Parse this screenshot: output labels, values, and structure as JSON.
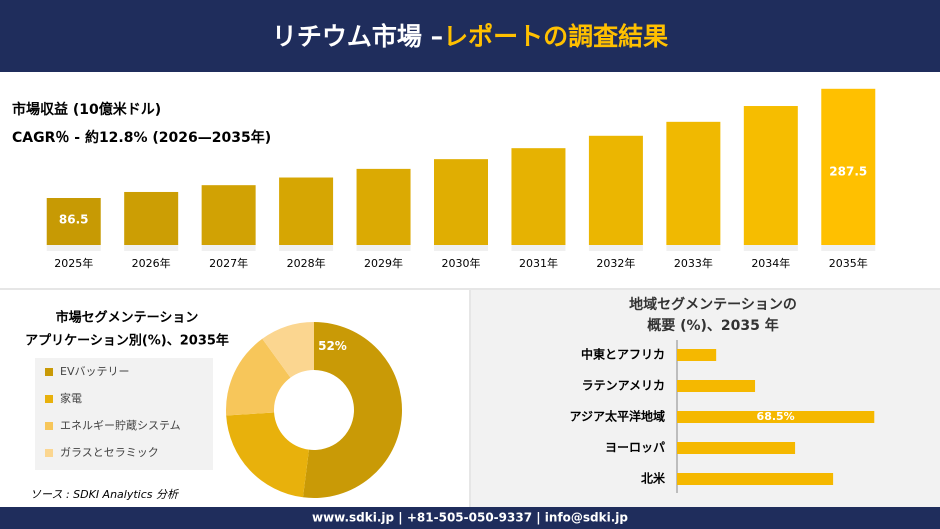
{
  "header": {
    "title": "リチウム市場 –",
    "title_highlight": "レポートの調査結果"
  },
  "chart_data": [
    {
      "type": "bar",
      "title": "市場収益 (10億米ドル)",
      "subtitle": "CAGR％ - 約12.8% (2026—2035年)",
      "categories": [
        "2025年",
        "2026年",
        "2027年",
        "2028年",
        "2029年",
        "2030年",
        "2031年",
        "2032年",
        "2033年",
        "2034年",
        "2035年"
      ],
      "values": [
        86.5,
        97.6,
        110.1,
        124.2,
        140.1,
        158.0,
        178.2,
        201.0,
        226.7,
        255.8,
        287.5
      ],
      "value_labels": [
        "86.5",
        null,
        null,
        null,
        null,
        null,
        null,
        null,
        null,
        null,
        "287.5"
      ],
      "colors": [
        "#c79a04",
        "#cc9e04",
        "#d1a204",
        "#d6a603",
        "#dbaa03",
        "#e0ae02",
        "#e6b202",
        "#ebb601",
        "#f0b901",
        "#f6bd00",
        "#ffc000"
      ],
      "ylim": [
        0,
        300
      ]
    },
    {
      "type": "pie",
      "title": "市場セグメンテーション",
      "subtitle": "アプリケーション別(%)、2035年",
      "categories": [
        "EVバッテリー",
        "家電",
        "エネルギー貯蔵システム",
        "ガラスとセラミック"
      ],
      "values": [
        52,
        22,
        16,
        10
      ],
      "value_labels": [
        "52%",
        null,
        null,
        null
      ],
      "colors": [
        "#c99a06",
        "#e8b10c",
        "#f7c65a",
        "#fbd690"
      ]
    },
    {
      "type": "barh",
      "title": "地域セグメンテーションの",
      "subtitle": "概要 (%)、2035 年",
      "categories": [
        "中東とアフリカ",
        "ラテンアメリカ",
        "アジア太平洋地域",
        "ヨーロッパ",
        "北米"
      ],
      "values": [
        13.6,
        27.1,
        68.5,
        41.0,
        54.2
      ],
      "value_labels": [
        null,
        null,
        "68.5%",
        null,
        null
      ],
      "color": "#f5b800",
      "xlim": [
        0,
        75
      ]
    }
  ],
  "source": "ソース : SDKI Analytics 分析",
  "footer": "www.sdki.jp | +81-505-050-9337 | info@sdki.jp"
}
